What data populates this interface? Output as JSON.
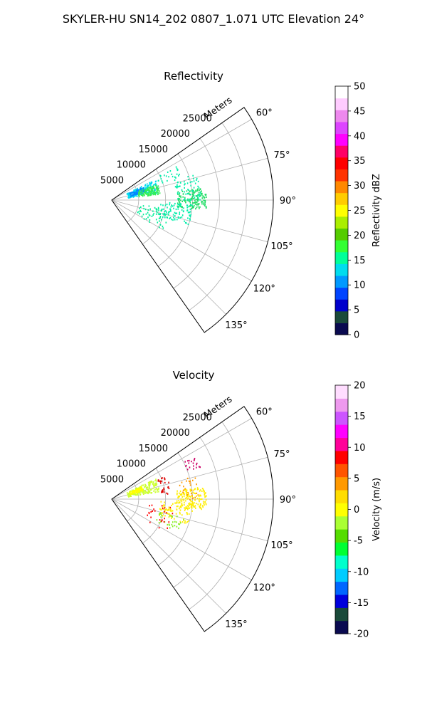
{
  "suptitle": "SKYLER-HU  SN14_202  0807_1.071 UTC Elevation 24°",
  "chart_data": [
    {
      "type": "polar-sector",
      "title": "Reflectivity",
      "radial_label": "Meters",
      "radial_ticks": [
        "5000",
        "10000",
        "15000",
        "20000",
        "25000"
      ],
      "radial_tick_values": [
        5000,
        10000,
        15000,
        20000,
        25000
      ],
      "rmax": 30000,
      "theta_range_deg": [
        55,
        145
      ],
      "theta_ticks": [
        "60°",
        "75°",
        "90°",
        "105°",
        "120°",
        "135°"
      ],
      "theta_tick_values": [
        60,
        75,
        90,
        105,
        120,
        135
      ],
      "grid": true,
      "colorbar": {
        "label": "Reflectivity dBZ",
        "range": [
          0,
          50
        ],
        "ticks": [
          "0",
          "5",
          "10",
          "15",
          "20",
          "25",
          "30",
          "35",
          "40",
          "45",
          "50"
        ],
        "stops": [
          "#0a0a50",
          "#1a4a3a",
          "#0000cc",
          "#0044ff",
          "#0099ff",
          "#00ddee",
          "#00ff99",
          "#33ff33",
          "#55cc00",
          "#aaee00",
          "#ffff00",
          "#ffcc00",
          "#ff8800",
          "#ff3300",
          "#ff0000",
          "#ff0066",
          "#ff00ff",
          "#dd44ff",
          "#ee88ee",
          "#ffccff",
          "#ffffff"
        ]
      },
      "echo_clusters": [
        {
          "az": [
            62,
            72
          ],
          "r": [
            9000,
            13500
          ],
          "count": 25,
          "color": "#00eeaa"
        },
        {
          "az": [
            64,
            80
          ],
          "r": [
            3000,
            9000
          ],
          "count": 170,
          "color": "#00ddee"
        },
        {
          "az": [
            66,
            76
          ],
          "r": [
            3500,
            6500
          ],
          "count": 80,
          "color": "#0088ff"
        },
        {
          "az": [
            70,
            82
          ],
          "r": [
            5000,
            9000
          ],
          "count": 130,
          "color": "#33ee55"
        },
        {
          "az": [
            82,
            96
          ],
          "r": [
            12000,
            17500
          ],
          "count": 150,
          "color": "#22dd66"
        },
        {
          "az": [
            92,
            108
          ],
          "r": [
            9000,
            15000
          ],
          "count": 90,
          "color": "#00eeaa"
        },
        {
          "az": [
            98,
            120
          ],
          "r": [
            5000,
            11000
          ],
          "count": 60,
          "color": "#00ee99"
        },
        {
          "az": [
            72,
            90
          ],
          "r": [
            12000,
            16500
          ],
          "count": 60,
          "color": "#00eeaa"
        }
      ]
    },
    {
      "type": "polar-sector",
      "title": "Velocity",
      "radial_label": "Meters",
      "radial_ticks": [
        "5000",
        "10000",
        "15000",
        "20000",
        "25000"
      ],
      "radial_tick_values": [
        5000,
        10000,
        15000,
        20000,
        25000
      ],
      "rmax": 30000,
      "theta_range_deg": [
        55,
        145
      ],
      "theta_ticks": [
        "60°",
        "75°",
        "90°",
        "105°",
        "120°",
        "135°"
      ],
      "theta_tick_values": [
        60,
        75,
        90,
        105,
        120,
        135
      ],
      "grid": true,
      "colorbar": {
        "label": "Velocity (m/s)",
        "range": [
          -20,
          20
        ],
        "ticks": [
          "-20",
          "-15",
          "-10",
          "-5",
          "0",
          "5",
          "10",
          "15",
          "20"
        ],
        "stops": [
          "#0a0a50",
          "#1a4a3a",
          "#0000dd",
          "#0066ff",
          "#00ccff",
          "#00ffcc",
          "#00ff33",
          "#55dd00",
          "#aaff33",
          "#ffff00",
          "#ffdd00",
          "#ff9900",
          "#ff5500",
          "#ff0000",
          "#ff0099",
          "#ff00ff",
          "#cc55ff",
          "#ee99ee",
          "#ffddff"
        ]
      },
      "echo_clusters": [
        {
          "az": [
            64,
            80
          ],
          "r": [
            3000,
            9000
          ],
          "count": 190,
          "color": "#ccff33"
        },
        {
          "az": [
            66,
            74
          ],
          "r": [
            3500,
            6000
          ],
          "count": 60,
          "color": "#ffff00"
        },
        {
          "az": [
            82,
            96
          ],
          "r": [
            12000,
            17500
          ],
          "count": 150,
          "color": "#ffee00"
        },
        {
          "az": [
            92,
            108
          ],
          "r": [
            9000,
            15000
          ],
          "count": 90,
          "color": "#ffee00"
        },
        {
          "az": [
            104,
            116
          ],
          "r": [
            9000,
            14000
          ],
          "count": 30,
          "color": "#88ee22"
        },
        {
          "az": [
            62,
            70
          ],
          "r": [
            15000,
            17500
          ],
          "count": 20,
          "color": "#cc0066"
        },
        {
          "az": [
            74,
            90
          ],
          "r": [
            12500,
            16000
          ],
          "count": 25,
          "color": "#ff9900"
        },
        {
          "az": [
            66,
            84
          ],
          "r": [
            9000,
            11000
          ],
          "count": 28,
          "color": "#dd0000"
        },
        {
          "az": [
            96,
            122
          ],
          "r": [
            7000,
            12000
          ],
          "count": 26,
          "color": "#ff0000"
        }
      ]
    }
  ]
}
